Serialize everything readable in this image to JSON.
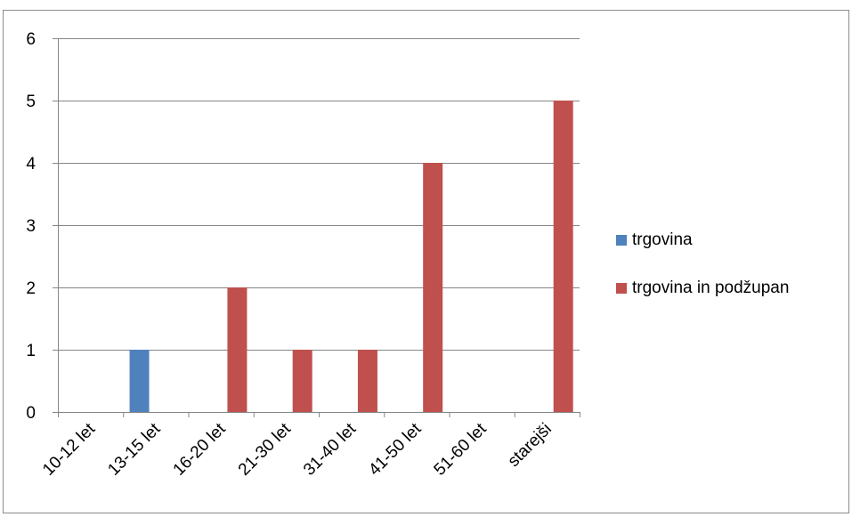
{
  "chart_data": {
    "type": "bar",
    "categories": [
      "10-12 let",
      "13-15 let",
      "16-20 let",
      "21-30 let",
      "31-40 let",
      "41-50 let",
      "51-60 let",
      "starejši"
    ],
    "series": [
      {
        "name": "trgovina",
        "color": "#4f81bd",
        "values": [
          0,
          1,
          0,
          0,
          0,
          0,
          0,
          0
        ]
      },
      {
        "name": "trgovina in podžupan",
        "color": "#c0504d",
        "values": [
          0,
          0,
          2,
          1,
          1,
          4,
          0,
          5
        ]
      }
    ],
    "yticks": [
      0,
      1,
      2,
      3,
      4,
      5,
      6
    ],
    "ylim": [
      0,
      6
    ],
    "title": "",
    "xlabel": "",
    "ylabel": "",
    "grid": true,
    "legend_position": "right"
  }
}
